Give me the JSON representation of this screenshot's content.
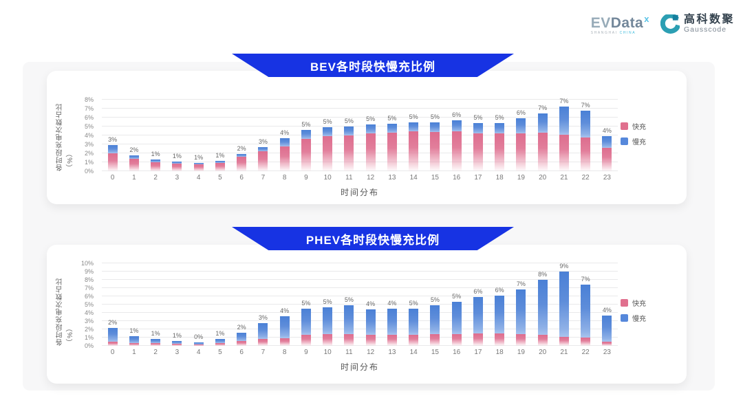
{
  "header": {
    "evdata_logo": {
      "word_part1": "EV",
      "word_part2": "Data",
      "superscript": "x",
      "subtext_part1": "SHANGHAI",
      "subtext_part2": "CHINA"
    },
    "gausscode_logo": {
      "cn": "高科数聚",
      "en": "Gausscode",
      "icon_color": "#2c9fb3",
      "icon_accent": "#157f9e"
    }
  },
  "colors": {
    "banner_blue": "#1733e3",
    "fast_pink": "#e0708e",
    "slow_blue": "#5688db",
    "card_bg": "#ffffff",
    "backdrop_gray": "#f7f7f8"
  },
  "chart_data": [
    {
      "type": "bar",
      "stacked": true,
      "title": "BEV各时段快慢充比例",
      "xlabel": "时间分布",
      "ylabel": "各时段充电次数占比（%）",
      "ylim": [
        0,
        8
      ],
      "ytick_step": 1,
      "ytick_suffix": "%",
      "grid": true,
      "legend_position": "right",
      "categories": [
        "0",
        "1",
        "2",
        "3",
        "4",
        "5",
        "6",
        "7",
        "8",
        "9",
        "10",
        "11",
        "12",
        "13",
        "14",
        "15",
        "16",
        "17",
        "18",
        "19",
        "20",
        "21",
        "22",
        "23"
      ],
      "total_labels": [
        "3%",
        "2%",
        "1%",
        "1%",
        "1%",
        "1%",
        "2%",
        "3%",
        "4%",
        "5%",
        "5%",
        "5%",
        "5%",
        "5%",
        "5%",
        "5%",
        "6%",
        "5%",
        "5%",
        "6%",
        "7%",
        "7%",
        "7%",
        "4%"
      ],
      "series": [
        {
          "name": "快充",
          "color": "#e0708e",
          "values": [
            2.0,
            1.4,
            1.0,
            0.85,
            0.8,
            0.9,
            1.6,
            2.2,
            2.8,
            3.6,
            3.9,
            4.0,
            4.2,
            4.3,
            4.5,
            4.4,
            4.5,
            4.2,
            4.2,
            4.2,
            4.3,
            4.1,
            3.8,
            2.6
          ]
        },
        {
          "name": "慢充",
          "color": "#5688db",
          "values": [
            0.9,
            0.4,
            0.3,
            0.25,
            0.15,
            0.25,
            0.3,
            0.5,
            0.9,
            1.0,
            1.0,
            1.0,
            1.0,
            1.0,
            1.0,
            1.1,
            1.2,
            1.2,
            1.2,
            1.7,
            2.2,
            3.1,
            3.0,
            1.3
          ]
        }
      ]
    },
    {
      "type": "bar",
      "stacked": true,
      "title": "PHEV各时段快慢充比例",
      "xlabel": "时间分布",
      "ylabel": "各时段充电次数占比（%）",
      "ylim": [
        0,
        10
      ],
      "ytick_step": 1,
      "ytick_suffix": "%",
      "grid": true,
      "legend_position": "right",
      "categories": [
        "0",
        "1",
        "2",
        "3",
        "4",
        "5",
        "6",
        "7",
        "8",
        "9",
        "10",
        "11",
        "12",
        "13",
        "14",
        "15",
        "16",
        "17",
        "18",
        "19",
        "20",
        "21",
        "22",
        "23"
      ],
      "total_labels": [
        "2%",
        "1%",
        "1%",
        "1%",
        "0%",
        "1%",
        "2%",
        "3%",
        "4%",
        "5%",
        "5%",
        "5%",
        "4%",
        "4%",
        "5%",
        "5%",
        "5%",
        "6%",
        "6%",
        "7%",
        "8%",
        "9%",
        "7%",
        "4%"
      ],
      "series": [
        {
          "name": "快充",
          "color": "#e0708e",
          "values": [
            0.5,
            0.35,
            0.3,
            0.25,
            0.2,
            0.35,
            0.6,
            0.8,
            0.9,
            1.3,
            1.4,
            1.45,
            1.35,
            1.35,
            1.35,
            1.45,
            1.4,
            1.5,
            1.5,
            1.4,
            1.3,
            1.1,
            1.0,
            0.5
          ]
        },
        {
          "name": "慢充",
          "color": "#5688db",
          "values": [
            1.7,
            0.85,
            0.5,
            0.35,
            0.25,
            0.5,
            0.95,
            1.95,
            2.7,
            3.2,
            3.3,
            3.45,
            3.05,
            3.15,
            3.15,
            3.45,
            3.9,
            4.4,
            4.6,
            5.4,
            6.7,
            7.9,
            6.4,
            3.2
          ]
        }
      ]
    }
  ]
}
